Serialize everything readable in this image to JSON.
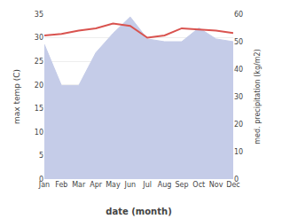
{
  "chart_data": {
    "type": "line",
    "xlabel": "date (month)",
    "ylabel": "max temp (C)",
    "y2label": "med. precipitation (kg/m2)",
    "categories": [
      "Jan",
      "Feb",
      "Mar",
      "Apr",
      "May",
      "Jun",
      "Jul",
      "Aug",
      "Sep",
      "Oct",
      "Nov",
      "Dec"
    ],
    "series": [
      {
        "type": "area",
        "axis": "y2",
        "color": "#c5cce8",
        "values": [
          49,
          34,
          34,
          46,
          53,
          59,
          51,
          50,
          50,
          55,
          51,
          50
        ]
      },
      {
        "type": "line",
        "color": "#d9534f",
        "values": [
          30.5,
          30.8,
          31.5,
          32.0,
          33.0,
          32.5,
          30.0,
          30.5,
          32.0,
          31.8,
          31.5,
          31.0
        ]
      }
    ],
    "ylim": [
      0,
      35
    ],
    "yticks": [
      0,
      5,
      10,
      15,
      20,
      25,
      30,
      35
    ],
    "y2lim": [
      0,
      60
    ],
    "y2ticks": [
      0,
      10,
      20,
      30,
      40,
      50,
      60
    ],
    "grid": true
  }
}
